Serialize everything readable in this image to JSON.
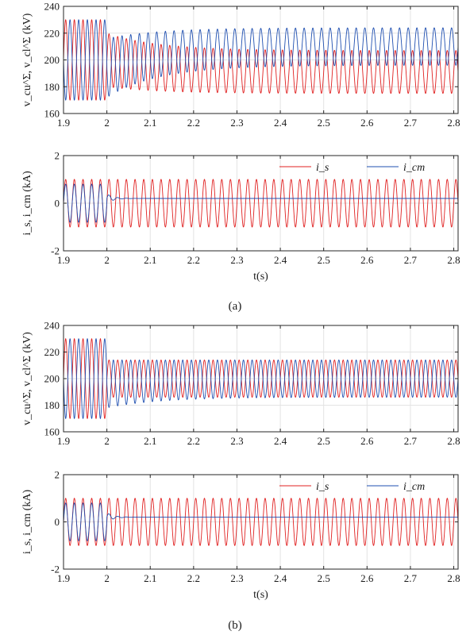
{
  "figure": {
    "caption_a": "(a)",
    "caption_b": "(b)"
  },
  "chart_data": [
    {
      "type": "line",
      "panel": "a-top",
      "ylabel": "v_cu^Σ, v_cl^Σ (kV)",
      "xlim": [
        1.9,
        2.81
      ],
      "ylim": [
        160,
        240
      ],
      "xticks": [
        "1.9",
        "2",
        "2.1",
        "2.2",
        "2.3",
        "2.4",
        "2.5",
        "2.6",
        "2.7",
        "2.8"
      ],
      "yticks": [
        "160",
        "180",
        "200",
        "220",
        "240"
      ],
      "xlabel": "",
      "grid": true,
      "series": [
        {
          "color": "#e02020",
          "model": "sine",
          "freq_hz": 50,
          "phase": 0,
          "before_2s": {
            "mean": 200,
            "amp": 30
          },
          "after_2s": {
            "mean_start": 200,
            "mean_end": 191,
            "amp_start": 20,
            "amp_end": 16
          }
        },
        {
          "color": "#1f4fb0",
          "model": "sine",
          "freq_hz": 50,
          "phase": 3.1416,
          "before_2s": {
            "mean": 200,
            "amp": 30
          },
          "after_2s": {
            "mean_start": 194,
            "mean_end": 210,
            "amp_start": 22,
            "amp_end": 14
          }
        }
      ]
    },
    {
      "type": "line",
      "panel": "a-bottom",
      "ylabel": "i_s, i_cm (kA)",
      "xlim": [
        1.9,
        2.81
      ],
      "ylim": [
        -2,
        2
      ],
      "xticks": [
        "1.9",
        "2",
        "2.1",
        "2.2",
        "2.3",
        "2.4",
        "2.5",
        "2.6",
        "2.7",
        "2.8"
      ],
      "yticks": [
        "-2",
        "0",
        "2"
      ],
      "xlabel": "t(s)",
      "grid": true,
      "legend": {
        "placement": "top-right",
        "entries": [
          "i_s",
          "i_cm"
        ]
      },
      "series": [
        {
          "name": "i_s",
          "color": "#e02020",
          "model": "sine",
          "freq_hz": 50,
          "mean": 0,
          "amp": 1.0
        },
        {
          "name": "i_cm",
          "color": "#1f4fb0",
          "model": "sine-then-dc",
          "freq_hz": 50,
          "before_2s": {
            "mean": 0,
            "amp": 0.8
          },
          "after_2s_dc": 0.2
        }
      ]
    },
    {
      "type": "line",
      "panel": "b-top",
      "ylabel": "v_cu^Σ, v_cl^Σ (kV)",
      "xlim": [
        1.9,
        2.81
      ],
      "ylim": [
        160,
        240
      ],
      "xticks": [
        "1.9",
        "2",
        "2.1",
        "2.2",
        "2.3",
        "2.4",
        "2.5",
        "2.6",
        "2.7",
        "2.8"
      ],
      "yticks": [
        "160",
        "180",
        "200",
        "220",
        "240"
      ],
      "xlabel": "",
      "grid": true,
      "series": [
        {
          "color": "#e02020",
          "model": "sine",
          "freq_hz": 50,
          "phase": 0,
          "before_2s": {
            "mean": 200,
            "amp": 30
          },
          "after_2s": {
            "mean_start": 200,
            "mean_end": 200,
            "amp_start": 14,
            "amp_end": 14
          }
        },
        {
          "color": "#1f4fb0",
          "model": "sine",
          "freq_hz": 50,
          "phase": 3.1416,
          "before_2s": {
            "mean": 200,
            "amp": 30
          },
          "after_2s": {
            "mean_start": 196,
            "mean_end": 200,
            "amp_start": 18,
            "amp_end": 14
          }
        }
      ]
    },
    {
      "type": "line",
      "panel": "b-bottom",
      "ylabel": "i_s, i_cm (kA)",
      "xlim": [
        1.9,
        2.81
      ],
      "ylim": [
        -2,
        2
      ],
      "xticks": [
        "1.9",
        "2",
        "2.1",
        "2.2",
        "2.3",
        "2.4",
        "2.5",
        "2.6",
        "2.7",
        "2.8"
      ],
      "yticks": [
        "-2",
        "0",
        "2"
      ],
      "xlabel": "t(s)",
      "grid": true,
      "legend": {
        "placement": "top-right",
        "entries": [
          "i_s",
          "i_cm"
        ]
      },
      "series": [
        {
          "name": "i_s",
          "color": "#e02020",
          "model": "sine",
          "freq_hz": 50,
          "mean": 0,
          "amp": 1.0
        },
        {
          "name": "i_cm",
          "color": "#1f4fb0",
          "model": "sine-then-dc",
          "freq_hz": 50,
          "before_2s": {
            "mean": 0,
            "amp": 0.8
          },
          "after_2s_dc": 0.2
        }
      ]
    }
  ]
}
